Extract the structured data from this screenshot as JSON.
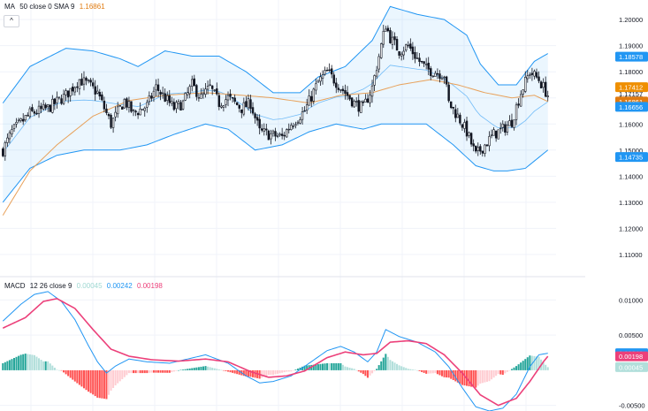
{
  "main_legend": {
    "name": "MA",
    "params": "50 close 0 SMA 9",
    "value": "1.16861",
    "collapse_symbol": "^"
  },
  "macd_legend": {
    "name": "MACD",
    "params": "12 26 close 9",
    "hist_value": "0.00045",
    "macd_value": "0.00242",
    "signal_value": "0.00198"
  },
  "colors": {
    "up": "#26a69a",
    "down": "#ef5350",
    "hist_up_strong": "#26a69a",
    "hist_up_weak": "#b2dfdb",
    "hist_down_strong": "#ff5252",
    "hist_down_weak": "#ffcdd2",
    "bb_line": "#2196f3",
    "bb_fill": "#2196f3",
    "ma": "#e8a15a",
    "macd_line": "#2196f3",
    "signal_line": "#ec407a",
    "grid": "#f0f3fa",
    "axis_text": "#131722"
  },
  "chart_data": [
    {
      "type": "candlestick",
      "title": "",
      "ylim": [
        1.1015,
        1.2075
      ],
      "y_ticks": [
        "1.20000",
        "1.19000",
        "1.18000",
        "1.17000",
        "1.16000",
        "1.15000",
        "1.14000",
        "1.13000",
        "1.12000",
        "1.11000"
      ],
      "y_tick_values": [
        1.2,
        1.19,
        1.18,
        1.17,
        1.16,
        1.15,
        1.14,
        1.13,
        1.12,
        1.11
      ],
      "price_labels": [
        {
          "text": "1.18578",
          "value": 1.18578,
          "color": "#2196f3"
        },
        {
          "text": "1.17412",
          "value": 1.17412,
          "color": "#ef8f00"
        },
        {
          "text": "1.17157",
          "value": 1.17157,
          "color": "none"
        },
        {
          "text": "1.16861",
          "value": 1.16861,
          "color": "#e07a0f"
        },
        {
          "text": "1.16656",
          "value": 1.16656,
          "color": "#2196f3"
        },
        {
          "text": "1.14735",
          "value": 1.14735,
          "color": "#2196f3"
        }
      ],
      "close_keypoints": [
        [
          0,
          1.15
        ],
        [
          4,
          1.157
        ],
        [
          12,
          1.164
        ],
        [
          20,
          1.166
        ],
        [
          28,
          1.171
        ],
        [
          34,
          1.177
        ],
        [
          38,
          1.175
        ],
        [
          42,
          1.172
        ],
        [
          48,
          1.16
        ],
        [
          54,
          1.169
        ],
        [
          58,
          1.164
        ],
        [
          64,
          1.167
        ],
        [
          68,
          1.174
        ],
        [
          72,
          1.17
        ],
        [
          76,
          1.166
        ],
        [
          80,
          1.168
        ],
        [
          84,
          1.175
        ],
        [
          88,
          1.17
        ],
        [
          92,
          1.174
        ],
        [
          96,
          1.168
        ],
        [
          100,
          1.17
        ],
        [
          106,
          1.166
        ],
        [
          110,
          1.168
        ],
        [
          114,
          1.157
        ],
        [
          118,
          1.156
        ],
        [
          124,
          1.155
        ],
        [
          128,
          1.16
        ],
        [
          134,
          1.165
        ],
        [
          140,
          1.176
        ],
        [
          144,
          1.18
        ],
        [
          148,
          1.176
        ],
        [
          152,
          1.172
        ],
        [
          156,
          1.168
        ],
        [
          160,
          1.166
        ],
        [
          164,
          1.174
        ],
        [
          168,
          1.19
        ],
        [
          170,
          1.198
        ],
        [
          172,
          1.193
        ],
        [
          176,
          1.188
        ],
        [
          180,
          1.19
        ],
        [
          184,
          1.185
        ],
        [
          188,
          1.181
        ],
        [
          192,
          1.18
        ],
        [
          196,
          1.179
        ],
        [
          198,
          1.168
        ],
        [
          202,
          1.163
        ],
        [
          206,
          1.157
        ],
        [
          210,
          1.148
        ],
        [
          214,
          1.152
        ],
        [
          218,
          1.156
        ],
        [
          222,
          1.158
        ],
        [
          226,
          1.161
        ],
        [
          230,
          1.172
        ],
        [
          234,
          1.18
        ],
        [
          238,
          1.177
        ],
        [
          242,
          1.171
        ]
      ],
      "candle_count": 243,
      "bollinger_upper_keypoints": [
        [
          0,
          1.168
        ],
        [
          12,
          1.182
        ],
        [
          28,
          1.189
        ],
        [
          40,
          1.188
        ],
        [
          52,
          1.185
        ],
        [
          60,
          1.182
        ],
        [
          72,
          1.188
        ],
        [
          84,
          1.186
        ],
        [
          96,
          1.186
        ],
        [
          108,
          1.18
        ],
        [
          120,
          1.172
        ],
        [
          132,
          1.172
        ],
        [
          140,
          1.178
        ],
        [
          152,
          1.182
        ],
        [
          164,
          1.192
        ],
        [
          172,
          1.205
        ],
        [
          184,
          1.202
        ],
        [
          196,
          1.2
        ],
        [
          206,
          1.194
        ],
        [
          212,
          1.183
        ],
        [
          220,
          1.175
        ],
        [
          228,
          1.175
        ],
        [
          236,
          1.184
        ],
        [
          242,
          1.187
        ]
      ],
      "bollinger_lower_keypoints": [
        [
          0,
          1.13
        ],
        [
          12,
          1.143
        ],
        [
          24,
          1.148
        ],
        [
          36,
          1.15
        ],
        [
          52,
          1.15
        ],
        [
          64,
          1.152
        ],
        [
          76,
          1.156
        ],
        [
          90,
          1.16
        ],
        [
          100,
          1.158
        ],
        [
          112,
          1.15
        ],
        [
          124,
          1.152
        ],
        [
          136,
          1.157
        ],
        [
          148,
          1.16
        ],
        [
          160,
          1.158
        ],
        [
          168,
          1.16
        ],
        [
          176,
          1.16
        ],
        [
          188,
          1.16
        ],
        [
          200,
          1.152
        ],
        [
          210,
          1.144
        ],
        [
          218,
          1.142
        ],
        [
          224,
          1.142
        ],
        [
          232,
          1.143
        ],
        [
          242,
          1.15
        ]
      ],
      "ma_keypoints": [
        [
          0,
          1.125
        ],
        [
          12,
          1.142
        ],
        [
          24,
          1.152
        ],
        [
          40,
          1.163
        ],
        [
          56,
          1.169
        ],
        [
          72,
          1.171
        ],
        [
          90,
          1.172
        ],
        [
          106,
          1.171
        ],
        [
          120,
          1.17
        ],
        [
          136,
          1.168
        ],
        [
          150,
          1.171
        ],
        [
          164,
          1.172
        ],
        [
          176,
          1.175
        ],
        [
          190,
          1.177
        ],
        [
          202,
          1.175
        ],
        [
          214,
          1.172
        ],
        [
          226,
          1.17
        ],
        [
          236,
          1.171
        ],
        [
          242,
          1.1686
        ]
      ]
    },
    {
      "type": "macd",
      "title": "",
      "ylim": [
        -0.0058,
        0.0132
      ],
      "y_ticks": [
        "0.01000",
        "0.00500",
        "-0.00500"
      ],
      "y_tick_values": [
        0.01,
        0.005,
        -0.005
      ],
      "value_labels": [
        {
          "text": "0.00242",
          "value": 0.00242,
          "color": "#2196f3"
        },
        {
          "text": "0.00198",
          "value": 0.00198,
          "color": "#ec407a"
        },
        {
          "text": "0.00045",
          "value": 0.00045,
          "color": "#b2dfdb"
        },
        {
          "text": "-0.00500",
          "value": -0.005,
          "color": "none"
        }
      ],
      "macd_keypoints": [
        [
          0,
          0.007
        ],
        [
          8,
          0.0094
        ],
        [
          14,
          0.0108
        ],
        [
          20,
          0.0112
        ],
        [
          26,
          0.0098
        ],
        [
          32,
          0.0072
        ],
        [
          38,
          0.0035
        ],
        [
          42,
          0.0012
        ],
        [
          46,
          -0.0004
        ],
        [
          50,
          0.0006
        ],
        [
          56,
          0.0016
        ],
        [
          64,
          0.0012
        ],
        [
          74,
          0.001
        ],
        [
          82,
          0.0016
        ],
        [
          90,
          0.0022
        ],
        [
          100,
          0.001
        ],
        [
          108,
          -0.0008
        ],
        [
          114,
          -0.0018
        ],
        [
          120,
          -0.0016
        ],
        [
          128,
          -0.0008
        ],
        [
          136,
          0.001
        ],
        [
          144,
          0.0028
        ],
        [
          150,
          0.0034
        ],
        [
          156,
          0.0026
        ],
        [
          162,
          0.0012
        ],
        [
          166,
          0.0026
        ],
        [
          170,
          0.0058
        ],
        [
          176,
          0.0048
        ],
        [
          184,
          0.004
        ],
        [
          192,
          0.0026
        ],
        [
          198,
          0.0005
        ],
        [
          204,
          -0.0025
        ],
        [
          210,
          -0.0052
        ],
        [
          216,
          -0.0058
        ],
        [
          222,
          -0.0054
        ],
        [
          228,
          -0.0034
        ],
        [
          234,
          0.0005
        ],
        [
          238,
          0.0022
        ],
        [
          242,
          0.00242
        ]
      ],
      "signal_keypoints": [
        [
          0,
          0.006
        ],
        [
          10,
          0.0075
        ],
        [
          18,
          0.0098
        ],
        [
          24,
          0.0102
        ],
        [
          32,
          0.0088
        ],
        [
          40,
          0.0058
        ],
        [
          48,
          0.003
        ],
        [
          56,
          0.002
        ],
        [
          66,
          0.0015
        ],
        [
          78,
          0.0013
        ],
        [
          90,
          0.0016
        ],
        [
          100,
          0.0012
        ],
        [
          110,
          -0.0002
        ],
        [
          118,
          -0.001
        ],
        [
          126,
          -0.0008
        ],
        [
          134,
          -0.0001
        ],
        [
          144,
          0.0018
        ],
        [
          152,
          0.0026
        ],
        [
          160,
          0.0022
        ],
        [
          166,
          0.0024
        ],
        [
          172,
          0.004
        ],
        [
          180,
          0.0042
        ],
        [
          188,
          0.0038
        ],
        [
          196,
          0.0022
        ],
        [
          204,
          -0.0004
        ],
        [
          212,
          -0.0035
        ],
        [
          220,
          -0.005
        ],
        [
          228,
          -0.004
        ],
        [
          234,
          -0.0016
        ],
        [
          240,
          0.0012
        ],
        [
          242,
          0.00198
        ]
      ]
    }
  ]
}
